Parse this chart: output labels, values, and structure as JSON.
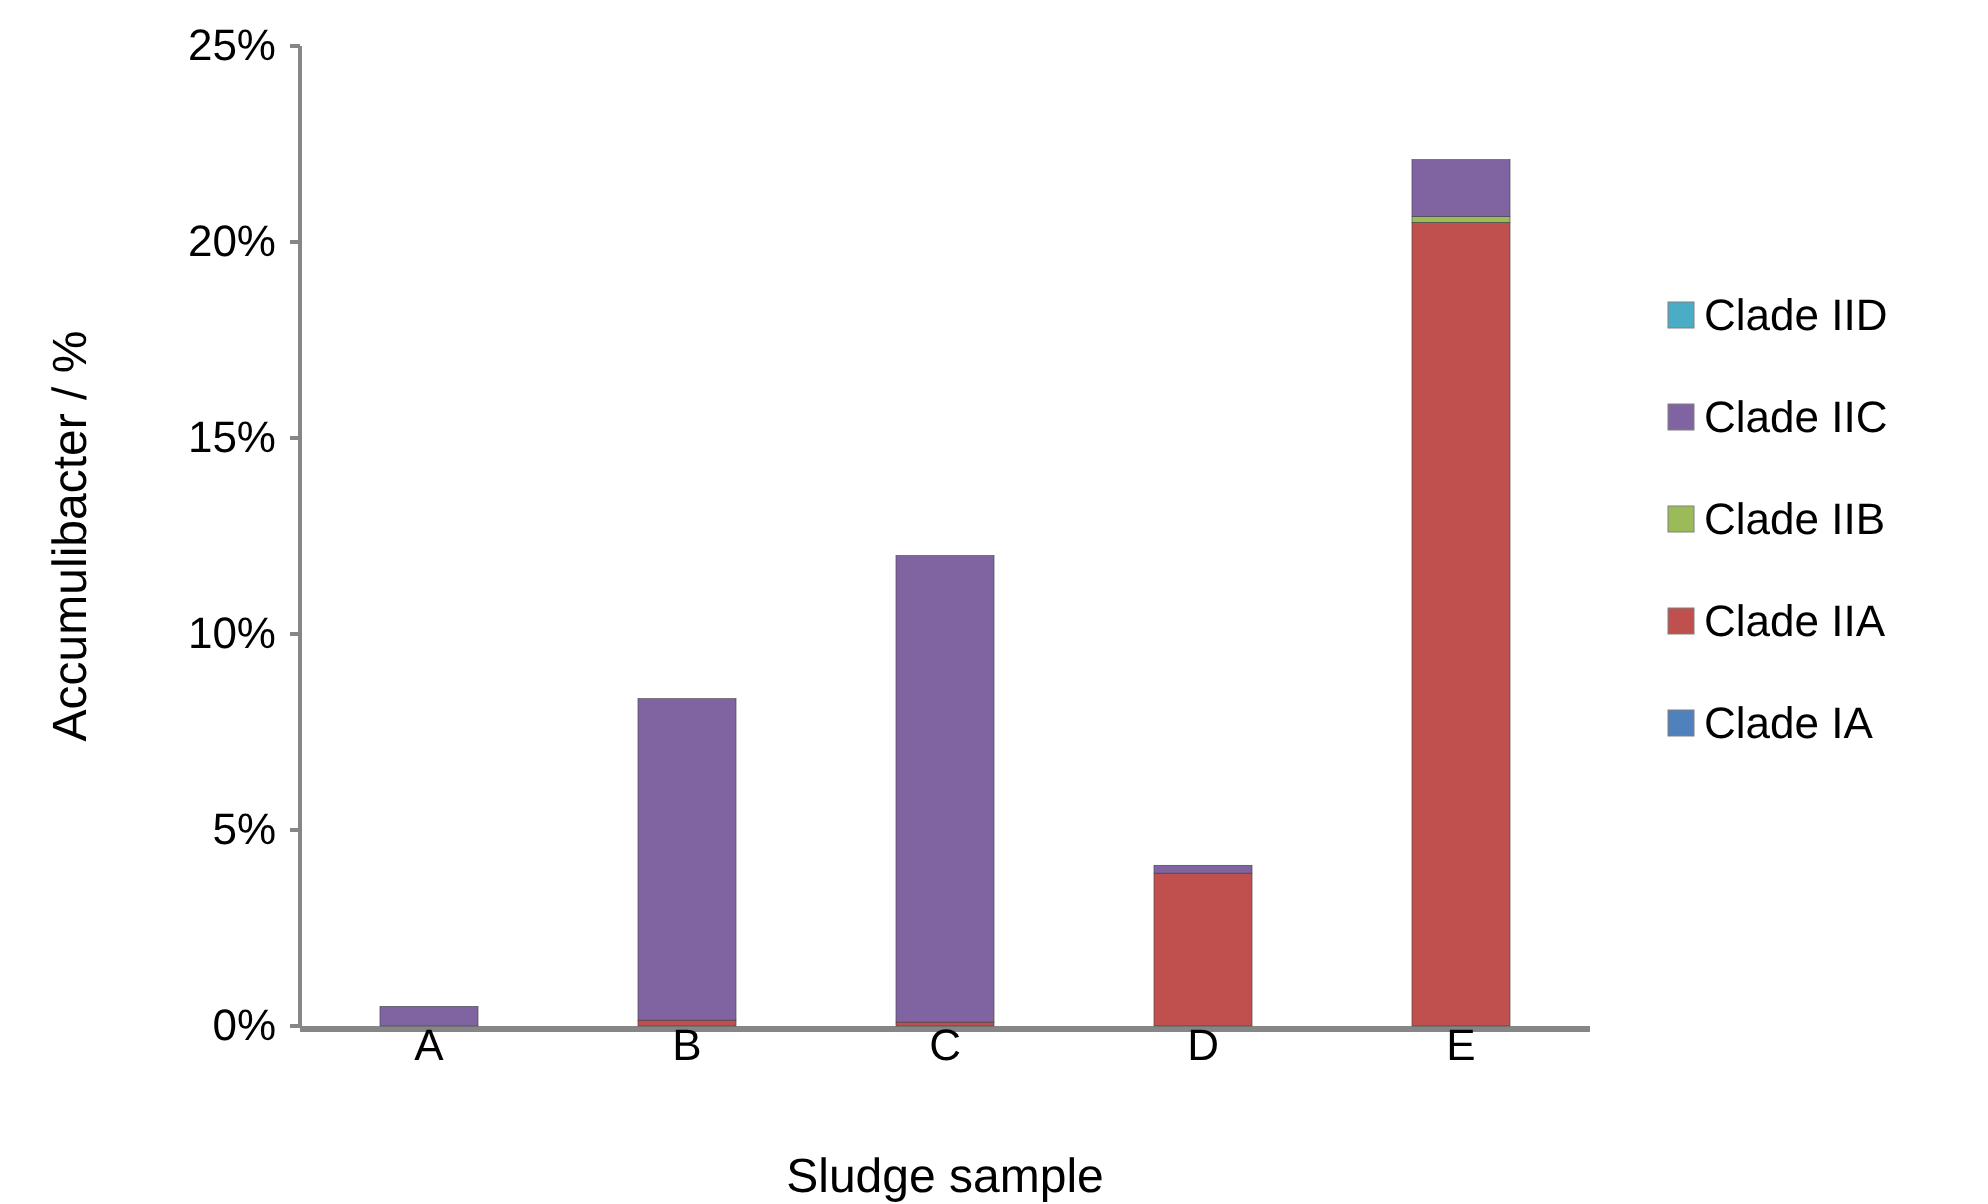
{
  "chart_data": {
    "type": "bar",
    "stacked": true,
    "xlabel": "Sludge sample",
    "ylabel": "Accumulibacter / %",
    "categories": [
      "A",
      "B",
      "C",
      "D",
      "E"
    ],
    "series": [
      {
        "name": "Clade IA",
        "color": "#4f81bd",
        "values": [
          0,
          0,
          0,
          0,
          0
        ]
      },
      {
        "name": "Clade IIA",
        "color": "#c0504d",
        "values": [
          0,
          0.15,
          0.1,
          3.9,
          20.5
        ]
      },
      {
        "name": "Clade IIB",
        "color": "#9bbb59",
        "values": [
          0,
          0,
          0,
          0,
          0.15
        ]
      },
      {
        "name": "Clade IIC",
        "color": "#8064a2",
        "values": [
          0.5,
          8.2,
          11.9,
          0.2,
          1.45
        ]
      },
      {
        "name": "Clade IID",
        "color": "#4bacc6",
        "values": [
          0,
          0,
          0,
          0,
          0
        ]
      }
    ],
    "ylim": [
      0,
      25
    ],
    "yticks": [
      {
        "value": 0,
        "label": "0%"
      },
      {
        "value": 5,
        "label": "5%"
      },
      {
        "value": 10,
        "label": "10%"
      },
      {
        "value": 15,
        "label": "15%"
      },
      {
        "value": 20,
        "label": "20%"
      },
      {
        "value": 25,
        "label": "25%"
      }
    ],
    "grid": false,
    "legend": "right"
  }
}
